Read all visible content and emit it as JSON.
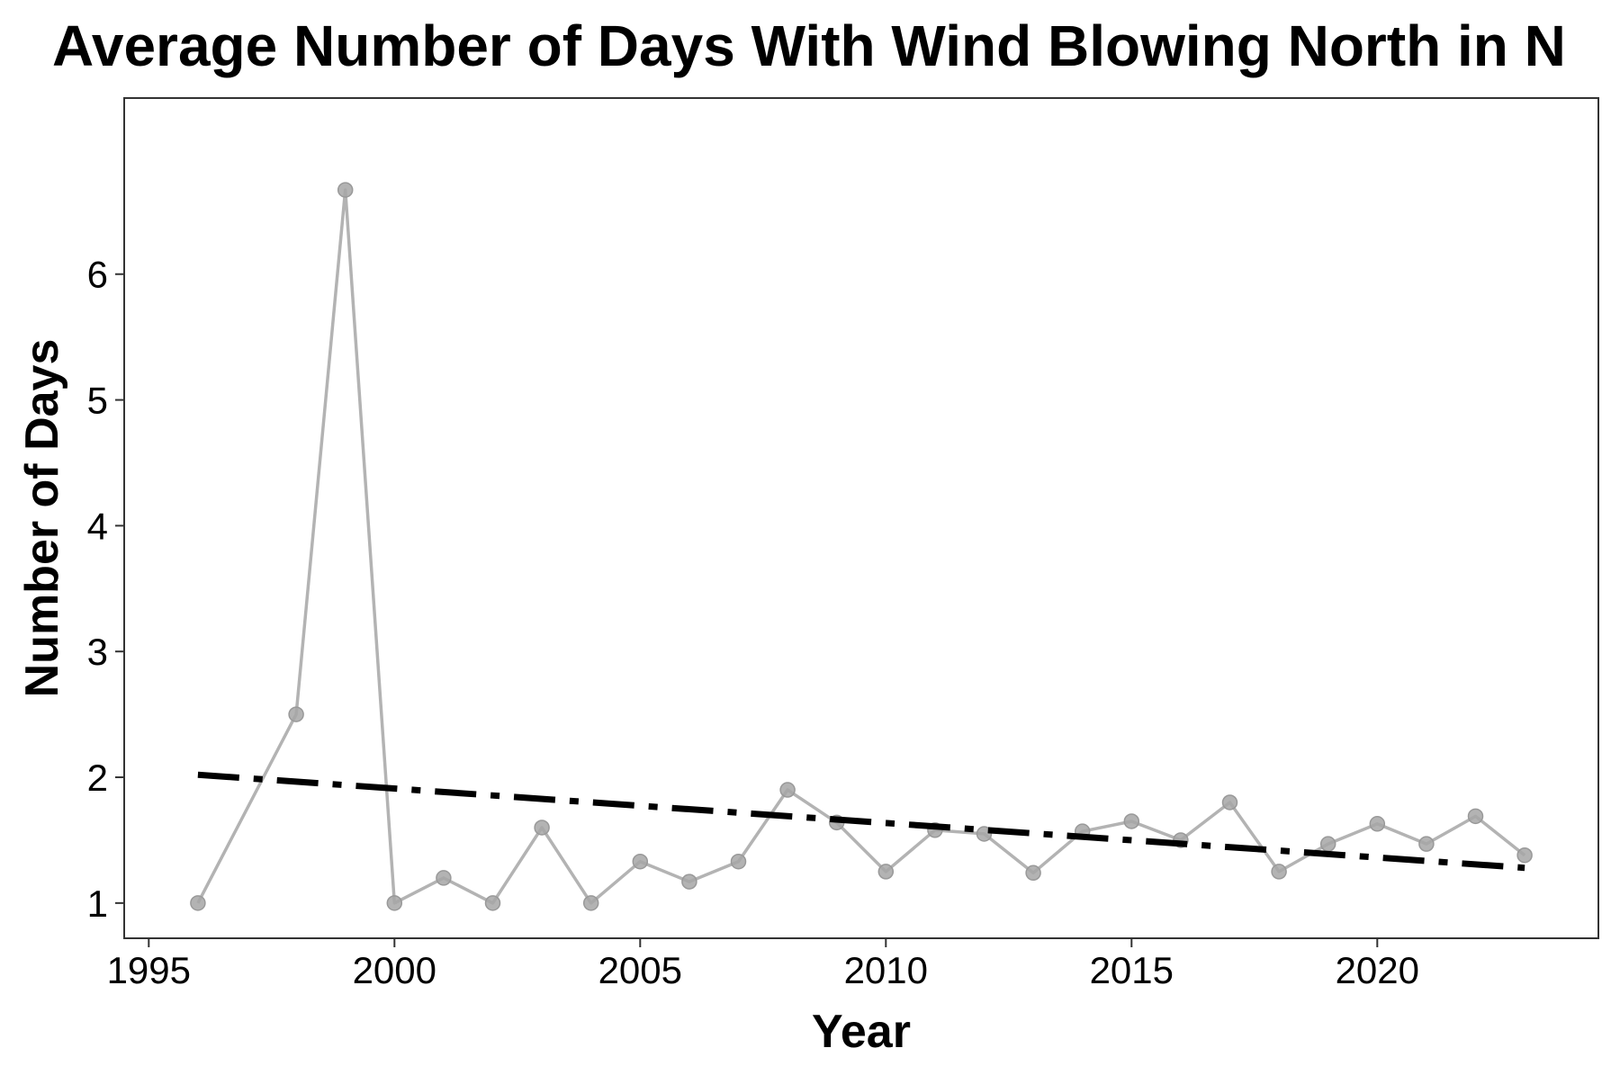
{
  "chart_data": {
    "type": "line",
    "title": "Average Number of Days With Wind Blowing North in N",
    "xlabel": "Year",
    "ylabel": "Number of Days",
    "xlim": [
      1994.5,
      2024.5
    ],
    "ylim": [
      0.72,
      7.4
    ],
    "xticks": [
      1995,
      2000,
      2005,
      2010,
      2015,
      2020
    ],
    "yticks": [
      1,
      2,
      3,
      4,
      5,
      6
    ],
    "grid": false,
    "series": [
      {
        "kind": "observed",
        "color": "#b3b3b3",
        "x": [
          1996,
          1998,
          1999,
          2000,
          2001,
          2002,
          2003,
          2004,
          2005,
          2006,
          2007,
          2008,
          2009,
          2010,
          2011,
          2012,
          2013,
          2014,
          2015,
          2016,
          2017,
          2018,
          2019,
          2020,
          2021,
          2022,
          2023
        ],
        "y": [
          1.0,
          2.5,
          6.67,
          1.0,
          1.2,
          1.0,
          1.6,
          1.0,
          1.33,
          1.17,
          1.33,
          1.9,
          1.64,
          1.25,
          1.58,
          1.55,
          1.24,
          1.57,
          1.65,
          1.5,
          1.8,
          1.25,
          1.47,
          1.63,
          1.47,
          1.69,
          1.38
        ]
      },
      {
        "kind": "trend",
        "color": "#000000",
        "x": [
          1996,
          2023
        ],
        "y": [
          2.02,
          1.28
        ]
      }
    ]
  }
}
